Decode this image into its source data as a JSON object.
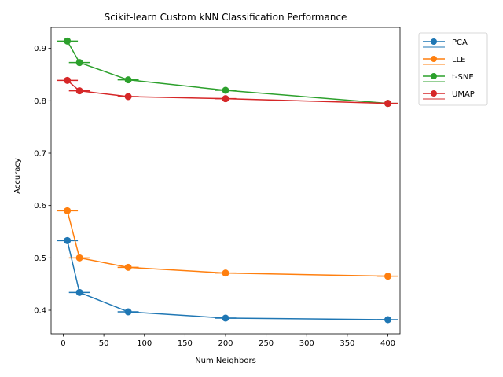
{
  "chart_data": {
    "type": "line",
    "title": "Scikit-learn Custom kNN Classification Performance",
    "xlabel": "Num Neighbors",
    "ylabel": "Accuracy",
    "x": [
      5,
      20,
      80,
      200,
      400
    ],
    "xlim": [
      -15,
      415
    ],
    "ylim": [
      0.355,
      0.94
    ],
    "xticks": [
      0,
      50,
      100,
      150,
      200,
      250,
      300,
      350,
      400
    ],
    "yticks": [
      0.4,
      0.5,
      0.6,
      0.7,
      0.8,
      0.9
    ],
    "xerr": [
      13,
      13,
      13,
      13,
      13
    ],
    "legend_position": "outside-top-right",
    "grid": false,
    "series": [
      {
        "name": "PCA",
        "color": "#1f77b4",
        "values": [
          0.533,
          0.434,
          0.397,
          0.385,
          0.382
        ]
      },
      {
        "name": "LLE",
        "color": "#ff7f0e",
        "values": [
          0.59,
          0.5,
          0.482,
          0.471,
          0.465
        ]
      },
      {
        "name": "t-SNE",
        "color": "#2ca02c",
        "values": [
          0.914,
          0.873,
          0.84,
          0.82,
          0.795
        ]
      },
      {
        "name": "UMAP",
        "color": "#d62728",
        "values": [
          0.839,
          0.819,
          0.808,
          0.804,
          0.795
        ]
      }
    ]
  }
}
